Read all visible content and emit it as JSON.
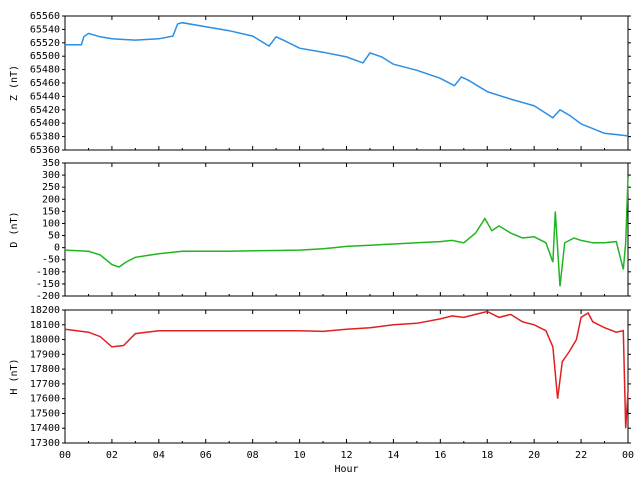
{
  "chart_data": [
    {
      "type": "line",
      "ylabel": "Z (nT)",
      "xlim": [
        0,
        24
      ],
      "ylim": [
        65360,
        65560
      ],
      "yticks": [
        65360,
        65380,
        65400,
        65420,
        65440,
        65460,
        65480,
        65500,
        65520,
        65540,
        65560
      ],
      "series": [
        {
          "name": "Z",
          "color": "#2a8ee6",
          "x": [
            0,
            0.7,
            0.8,
            1,
            1.5,
            2,
            3,
            4,
            4.6,
            4.8,
            5,
            6,
            7,
            8,
            8.7,
            9,
            9.3,
            10,
            11,
            12,
            12.7,
            13,
            13.5,
            14,
            15,
            16,
            16.6,
            16.9,
            17.2,
            18,
            19,
            20,
            20.8,
            21.1,
            21.5,
            22,
            23,
            24
          ],
          "values": [
            65517,
            65517,
            65529,
            65534,
            65529,
            65526,
            65524,
            65526,
            65530,
            65548,
            65550,
            65544,
            65538,
            65530,
            65515,
            65529,
            65524,
            65512,
            65506,
            65499,
            65490,
            65505,
            65499,
            65488,
            65479,
            65467,
            65456,
            65469,
            65464,
            65447,
            65436,
            65426,
            65408,
            65420,
            65412,
            65399,
            65385,
            65381
          ]
        }
      ]
    },
    {
      "type": "line",
      "ylabel": "D (nT)",
      "xlim": [
        0,
        24
      ],
      "ylim": [
        -200,
        350
      ],
      "yticks": [
        -200,
        -150,
        -100,
        -50,
        0,
        50,
        100,
        150,
        200,
        250,
        300,
        350
      ],
      "series": [
        {
          "name": "D",
          "color": "#22b522",
          "x": [
            0,
            1,
            1.5,
            2,
            2.3,
            2.6,
            3,
            4,
            5,
            6,
            7,
            8,
            9,
            10,
            11,
            11.5,
            12,
            13,
            14,
            15,
            16,
            16.5,
            17,
            17.5,
            17.9,
            18.2,
            18.5,
            19,
            19.5,
            20,
            20.5,
            20.8,
            20.9,
            21.1,
            21.3,
            21.7,
            22,
            22.5,
            23,
            23.5,
            23.8,
            23.9,
            24
          ],
          "values": [
            -10,
            -15,
            -30,
            -70,
            -80,
            -60,
            -40,
            -25,
            -15,
            -15,
            -15,
            -13,
            -12,
            -10,
            -5,
            0,
            5,
            10,
            15,
            20,
            25,
            30,
            20,
            60,
            120,
            70,
            90,
            60,
            40,
            45,
            20,
            -60,
            150,
            -160,
            20,
            40,
            30,
            20,
            20,
            25,
            -90,
            20,
            290
          ]
        }
      ]
    },
    {
      "type": "line",
      "ylabel": "H (nT)",
      "xlabel": "Hour",
      "xlim": [
        0,
        24
      ],
      "ylim": [
        17300,
        18200
      ],
      "xticks": [
        {
          "value": 0,
          "label": "00"
        },
        {
          "value": 2,
          "label": "02"
        },
        {
          "value": 4,
          "label": "04"
        },
        {
          "value": 6,
          "label": "06"
        },
        {
          "value": 8,
          "label": "08"
        },
        10,
        12,
        14,
        16,
        18,
        20,
        22,
        {
          "value": 24,
          "label": "00"
        }
      ],
      "yticks": [
        17300,
        17400,
        17500,
        17600,
        17700,
        17800,
        17900,
        18000,
        18100,
        18200
      ],
      "series": [
        {
          "name": "H",
          "color": "#e02020",
          "x": [
            0,
            1,
            1.5,
            2,
            2.5,
            3,
            4,
            6,
            8,
            10,
            11,
            12,
            13,
            14,
            15,
            16,
            16.5,
            17,
            17.5,
            18,
            18.5,
            19,
            19.5,
            20,
            20.5,
            20.8,
            21,
            21.2,
            21.5,
            21.8,
            22,
            22.3,
            22.5,
            23,
            23.5,
            23.8,
            23.9,
            24
          ],
          "values": [
            18070,
            18050,
            18020,
            17950,
            17960,
            18040,
            18060,
            18060,
            18060,
            18060,
            18055,
            18070,
            18080,
            18100,
            18110,
            18140,
            18160,
            18150,
            18170,
            18190,
            18150,
            18170,
            18120,
            18100,
            18060,
            17950,
            17600,
            17850,
            17920,
            18000,
            18150,
            18180,
            18120,
            18080,
            18050,
            18060,
            17400,
            17650
          ]
        }
      ]
    }
  ]
}
